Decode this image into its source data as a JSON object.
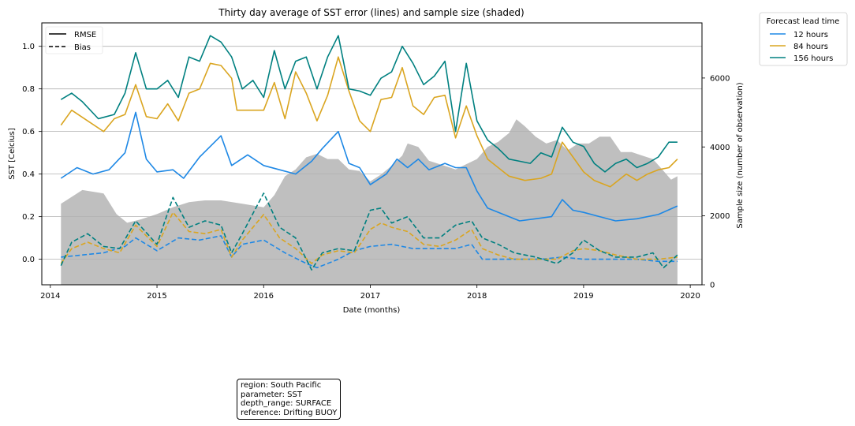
{
  "chart_data": {
    "type": "line",
    "title": "Thirty day average of SST error (lines) and sample size (shaded)",
    "xlabel": "Date (months)",
    "ylabel": "SST [Celcius]",
    "y2label": "Sample size (number of observation)",
    "xlim": [
      2013.92,
      2020.11
    ],
    "ylim": [
      -0.12,
      1.11
    ],
    "y2lim": [
      0,
      7600
    ],
    "xticks": [
      "2014",
      "2015",
      "2016",
      "2017",
      "2018",
      "2019",
      "2020"
    ],
    "yticks": [
      "0.0",
      "0.2",
      "0.4",
      "0.6",
      "0.8",
      "1.0"
    ],
    "y2ticks": [
      "0",
      "2000",
      "4000",
      "6000"
    ],
    "grid": "horizontal",
    "style_legend": {
      "position": "top-left",
      "items": [
        "RMSE",
        "Bias"
      ]
    },
    "color_legend": {
      "title": "Forecast lead time",
      "position": "outside-right",
      "items": [
        "12 hours",
        "84 hours",
        "156 hours"
      ]
    },
    "sample_size": {
      "color": "#bfbfbf",
      "x": [
        2014.1,
        2014.3,
        2014.5,
        2014.62,
        2014.72,
        2014.85,
        2015.0,
        2015.15,
        2015.3,
        2015.45,
        2015.6,
        2015.8,
        2016.0,
        2016.1,
        2016.2,
        2016.3,
        2016.4,
        2016.5,
        2016.6,
        2016.7,
        2016.8,
        2016.9,
        2017.0,
        2017.1,
        2017.2,
        2017.3,
        2017.35,
        2017.45,
        2017.55,
        2017.7,
        2017.8,
        2017.9,
        2018.0,
        2018.1,
        2018.2,
        2018.3,
        2018.37,
        2018.45,
        2018.55,
        2018.65,
        2018.75,
        2018.85,
        2018.95,
        2019.05,
        2019.15,
        2019.25,
        2019.35,
        2019.45,
        2019.55,
        2019.65,
        2019.75,
        2019.82,
        2019.88
      ],
      "values": [
        2350,
        2750,
        2650,
        2050,
        1800,
        1900,
        2050,
        2250,
        2400,
        2450,
        2450,
        2350,
        2250,
        2600,
        3150,
        3350,
        3700,
        3800,
        3650,
        3650,
        3350,
        3300,
        3000,
        3200,
        3450,
        3750,
        4100,
        4000,
        3600,
        3450,
        3350,
        3500,
        3650,
        4000,
        4150,
        4400,
        4800,
        4600,
        4300,
        4100,
        4200,
        3900,
        4100,
        4100,
        4300,
        4300,
        3850,
        3850,
        3750,
        3650,
        3300,
        3050,
        3150
      ]
    },
    "series": [
      {
        "name": "12 hours",
        "color": "#1e88e5",
        "style": "RMSE",
        "x": [
          2014.1,
          2014.25,
          2014.4,
          2014.55,
          2014.7,
          2014.8,
          2014.9,
          2015.0,
          2015.15,
          2015.25,
          2015.4,
          2015.6,
          2015.7,
          2015.85,
          2016.0,
          2016.15,
          2016.3,
          2016.45,
          2016.55,
          2016.7,
          2016.8,
          2016.9,
          2017.0,
          2017.15,
          2017.25,
          2017.35,
          2017.45,
          2017.55,
          2017.7,
          2017.8,
          2017.9,
          2018.0,
          2018.1,
          2018.25,
          2018.4,
          2018.55,
          2018.7,
          2018.8,
          2018.9,
          2019.0,
          2019.15,
          2019.3,
          2019.5,
          2019.7,
          2019.88
        ],
        "values": [
          0.38,
          0.43,
          0.4,
          0.42,
          0.5,
          0.69,
          0.47,
          0.41,
          0.42,
          0.38,
          0.48,
          0.58,
          0.44,
          0.49,
          0.44,
          0.42,
          0.4,
          0.46,
          0.52,
          0.6,
          0.45,
          0.43,
          0.35,
          0.4,
          0.47,
          0.43,
          0.47,
          0.42,
          0.45,
          0.43,
          0.43,
          0.32,
          0.24,
          0.21,
          0.18,
          0.19,
          0.2,
          0.28,
          0.23,
          0.22,
          0.2,
          0.18,
          0.19,
          0.21,
          0.25
        ]
      },
      {
        "name": "84 hours",
        "color": "#daa520",
        "style": "RMSE",
        "x": [
          2014.1,
          2014.2,
          2014.35,
          2014.5,
          2014.6,
          2014.7,
          2014.8,
          2014.9,
          2015.0,
          2015.1,
          2015.2,
          2015.3,
          2015.4,
          2015.5,
          2015.6,
          2015.7,
          2015.75,
          2015.85,
          2016.0,
          2016.1,
          2016.2,
          2016.3,
          2016.4,
          2016.5,
          2016.6,
          2016.7,
          2016.8,
          2016.9,
          2017.0,
          2017.1,
          2017.2,
          2017.3,
          2017.4,
          2017.5,
          2017.6,
          2017.7,
          2017.8,
          2017.9,
          2018.0,
          2018.1,
          2018.2,
          2018.3,
          2018.45,
          2018.6,
          2018.7,
          2018.8,
          2018.9,
          2019.0,
          2019.1,
          2019.25,
          2019.4,
          2019.5,
          2019.6,
          2019.7,
          2019.8,
          2019.88
        ],
        "values": [
          0.63,
          0.7,
          0.65,
          0.6,
          0.66,
          0.68,
          0.82,
          0.67,
          0.66,
          0.73,
          0.65,
          0.78,
          0.8,
          0.92,
          0.91,
          0.85,
          0.7,
          0.7,
          0.7,
          0.83,
          0.66,
          0.88,
          0.78,
          0.65,
          0.77,
          0.95,
          0.79,
          0.65,
          0.6,
          0.75,
          0.76,
          0.9,
          0.72,
          0.68,
          0.76,
          0.77,
          0.57,
          0.72,
          0.58,
          0.47,
          0.43,
          0.39,
          0.37,
          0.38,
          0.4,
          0.55,
          0.48,
          0.41,
          0.37,
          0.34,
          0.4,
          0.37,
          0.4,
          0.42,
          0.43,
          0.47
        ]
      },
      {
        "name": "156 hours",
        "color": "#008080",
        "style": "RMSE",
        "x": [
          2014.1,
          2014.2,
          2014.3,
          2014.45,
          2014.6,
          2014.7,
          2014.8,
          2014.9,
          2015.0,
          2015.1,
          2015.2,
          2015.3,
          2015.4,
          2015.5,
          2015.6,
          2015.7,
          2015.8,
          2015.9,
          2016.0,
          2016.1,
          2016.2,
          2016.3,
          2016.4,
          2016.5,
          2016.6,
          2016.7,
          2016.8,
          2016.9,
          2017.0,
          2017.1,
          2017.2,
          2017.3,
          2017.4,
          2017.5,
          2017.6,
          2017.7,
          2017.8,
          2017.9,
          2018.0,
          2018.1,
          2018.2,
          2018.3,
          2018.4,
          2018.5,
          2018.6,
          2018.7,
          2018.8,
          2018.9,
          2019.0,
          2019.1,
          2019.2,
          2019.3,
          2019.4,
          2019.5,
          2019.6,
          2019.7,
          2019.8,
          2019.88
        ],
        "values": [
          0.75,
          0.78,
          0.74,
          0.66,
          0.68,
          0.78,
          0.97,
          0.8,
          0.8,
          0.84,
          0.76,
          0.95,
          0.93,
          1.05,
          1.02,
          0.95,
          0.8,
          0.84,
          0.76,
          0.98,
          0.8,
          0.93,
          0.95,
          0.8,
          0.95,
          1.05,
          0.8,
          0.79,
          0.77,
          0.85,
          0.88,
          1.0,
          0.92,
          0.82,
          0.86,
          0.93,
          0.6,
          0.92,
          0.65,
          0.56,
          0.52,
          0.47,
          0.46,
          0.45,
          0.5,
          0.48,
          0.62,
          0.55,
          0.53,
          0.45,
          0.41,
          0.45,
          0.47,
          0.43,
          0.45,
          0.48,
          0.55,
          0.55
        ]
      },
      {
        "name": "12 hours",
        "color": "#1e88e5",
        "style": "Bias",
        "x": [
          2014.1,
          2014.3,
          2014.5,
          2014.7,
          2014.8,
          2015.0,
          2015.2,
          2015.4,
          2015.6,
          2015.7,
          2015.8,
          2016.0,
          2016.2,
          2016.4,
          2016.5,
          2016.7,
          2016.85,
          2017.0,
          2017.2,
          2017.4,
          2017.6,
          2017.8,
          2017.95,
          2018.05,
          2018.3,
          2018.6,
          2018.8,
          2019.0,
          2019.2,
          2019.5,
          2019.7,
          2019.88
        ],
        "values": [
          0.01,
          0.02,
          0.03,
          0.06,
          0.1,
          0.04,
          0.1,
          0.09,
          0.11,
          0.01,
          0.07,
          0.09,
          0.03,
          -0.02,
          -0.04,
          0.0,
          0.04,
          0.06,
          0.07,
          0.05,
          0.05,
          0.05,
          0.07,
          0.0,
          0.0,
          0.0,
          0.01,
          0.0,
          0.0,
          0.0,
          -0.01,
          -0.01
        ]
      },
      {
        "name": "84 hours",
        "color": "#daa520",
        "style": "Bias",
        "x": [
          2014.1,
          2014.2,
          2014.35,
          2014.5,
          2014.65,
          2014.8,
          2015.0,
          2015.15,
          2015.3,
          2015.45,
          2015.6,
          2015.7,
          2015.8,
          2016.0,
          2016.15,
          2016.3,
          2016.45,
          2016.55,
          2016.7,
          2016.85,
          2017.0,
          2017.1,
          2017.2,
          2017.35,
          2017.5,
          2017.65,
          2017.8,
          2017.95,
          2018.05,
          2018.2,
          2018.35,
          2018.55,
          2018.75,
          2018.9,
          2019.0,
          2019.15,
          2019.3,
          2019.5,
          2019.7,
          2019.88
        ],
        "values": [
          -0.02,
          0.05,
          0.08,
          0.05,
          0.03,
          0.16,
          0.06,
          0.22,
          0.13,
          0.12,
          0.14,
          0.01,
          0.09,
          0.21,
          0.1,
          0.05,
          -0.02,
          0.02,
          0.04,
          0.03,
          0.14,
          0.17,
          0.15,
          0.13,
          0.07,
          0.06,
          0.09,
          0.14,
          0.05,
          0.02,
          0.0,
          0.0,
          0.0,
          0.04,
          0.05,
          0.04,
          0.02,
          0.0,
          0.0,
          0.01
        ]
      },
      {
        "name": "156 hours",
        "color": "#008080",
        "style": "Bias",
        "x": [
          2014.1,
          2014.2,
          2014.35,
          2014.5,
          2014.65,
          2014.8,
          2015.0,
          2015.15,
          2015.3,
          2015.45,
          2015.6,
          2015.7,
          2015.8,
          2016.0,
          2016.15,
          2016.3,
          2016.45,
          2016.55,
          2016.7,
          2016.85,
          2017.0,
          2017.1,
          2017.2,
          2017.35,
          2017.5,
          2017.65,
          2017.8,
          2017.95,
          2018.05,
          2018.2,
          2018.35,
          2018.55,
          2018.75,
          2018.9,
          2019.0,
          2019.15,
          2019.3,
          2019.5,
          2019.65,
          2019.75,
          2019.88
        ],
        "values": [
          -0.03,
          0.08,
          0.12,
          0.06,
          0.05,
          0.18,
          0.07,
          0.29,
          0.15,
          0.18,
          0.16,
          0.03,
          0.12,
          0.31,
          0.15,
          0.1,
          -0.05,
          0.03,
          0.05,
          0.04,
          0.23,
          0.24,
          0.17,
          0.2,
          0.1,
          0.1,
          0.16,
          0.18,
          0.1,
          0.07,
          0.03,
          0.01,
          -0.02,
          0.03,
          0.09,
          0.04,
          0.01,
          0.01,
          0.03,
          -0.04,
          0.02
        ]
      }
    ]
  },
  "info_box": {
    "lines": [
      "region: South Pacific",
      "parameter: SST",
      "depth_range: SURFACE",
      "reference: Drifting BUOY"
    ]
  }
}
